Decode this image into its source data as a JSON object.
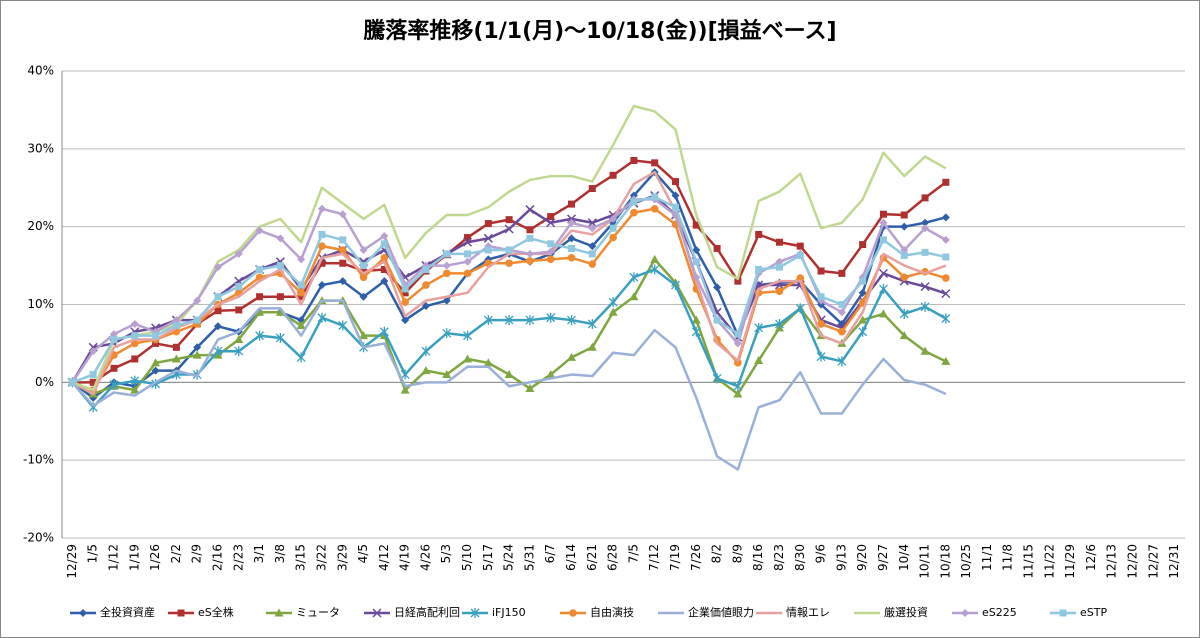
{
  "chart_data": {
    "type": "line",
    "title": "騰落率推移(1/1(月)～10/18(金))[損益ベース]",
    "categories": [
      "12/29",
      "1/5",
      "1/12",
      "1/19",
      "1/26",
      "2/2",
      "2/9",
      "2/16",
      "2/23",
      "3/1",
      "3/8",
      "3/15",
      "3/22",
      "3/29",
      "4/5",
      "4/12",
      "4/19",
      "4/26",
      "5/3",
      "5/10",
      "5/17",
      "5/24",
      "5/31",
      "6/7",
      "6/14",
      "6/21",
      "6/28",
      "7/5",
      "7/12",
      "7/19",
      "7/26",
      "8/2",
      "8/9",
      "8/16",
      "8/23",
      "8/30",
      "9/6",
      "9/13",
      "9/20",
      "9/27",
      "10/4",
      "10/11",
      "10/18",
      "10/25",
      "11/1",
      "11/8",
      "11/15",
      "11/22",
      "11/29",
      "12/6",
      "12/13",
      "12/20",
      "12/27",
      "12/31"
    ],
    "ylim": [
      -20,
      40
    ],
    "yticks": [
      {
        "value": -20,
        "label": "-20%"
      },
      {
        "value": -10,
        "label": "-10%"
      },
      {
        "value": 0,
        "label": "0%"
      },
      {
        "value": 10,
        "label": "10%"
      },
      {
        "value": 20,
        "label": "20%"
      },
      {
        "value": 30,
        "label": "30%"
      },
      {
        "value": 40,
        "label": "40%"
      }
    ],
    "grid": true,
    "legend": "bottom",
    "series": [
      {
        "name": "全投資資産",
        "color": "#2e5fa8",
        "marker": "diamond",
        "values": [
          0,
          -2,
          0,
          -0.5,
          1.5,
          1.5,
          4.5,
          7.2,
          6.5,
          9,
          9,
          8,
          12.5,
          13,
          11,
          13,
          8,
          9.8,
          10.5,
          14,
          15.8,
          16.5,
          15.5,
          16.5,
          18.5,
          17.5,
          20.5,
          24,
          27,
          24,
          17,
          12.2,
          6,
          12.5,
          12.8,
          13,
          10,
          7.5,
          11.5,
          20,
          20,
          20.5,
          21.2,
          null,
          null,
          null,
          null,
          null,
          null,
          null,
          null,
          null,
          null,
          null
        ]
      },
      {
        "name": "eS全株",
        "color": "#b03030",
        "marker": "square",
        "values": [
          0,
          0,
          1.8,
          3,
          5,
          4.5,
          7.5,
          9.2,
          9.3,
          11,
          11,
          11,
          15.3,
          15.3,
          14.3,
          14.5,
          11.5,
          14.3,
          16.4,
          18.6,
          20.4,
          20.9,
          19.6,
          21.3,
          22.9,
          24.9,
          26.6,
          28.5,
          28.2,
          25.8,
          20.2,
          17.2,
          13,
          19,
          18,
          17.5,
          14.3,
          14,
          17.7,
          21.6,
          21.5,
          23.7,
          25.7,
          null,
          null,
          null,
          null,
          null,
          null,
          null,
          null,
          null,
          null,
          null
        ]
      },
      {
        "name": "ミュータ",
        "color": "#7fa640",
        "marker": "triangle",
        "values": [
          0,
          -1.5,
          -0.5,
          -1,
          2.5,
          3,
          3.5,
          3.5,
          5.5,
          9,
          9,
          7.3,
          10.5,
          10.5,
          6,
          6,
          -1,
          1.5,
          1,
          3,
          2.5,
          1,
          -0.8,
          1,
          3.2,
          4.5,
          9,
          11,
          15.8,
          12.8,
          8,
          0.5,
          -1.5,
          2.8,
          7,
          9.5,
          6,
          5,
          8,
          8.8,
          6,
          4,
          2.7,
          null,
          null,
          null,
          null,
          null,
          null,
          null,
          null,
          null,
          null,
          null
        ]
      },
      {
        "name": "日経高配利回",
        "color": "#6a4a9a",
        "marker": "x",
        "values": [
          0,
          4.5,
          5,
          6.5,
          7,
          8,
          8,
          11,
          13,
          14.5,
          15.5,
          12,
          16,
          17,
          15.5,
          17,
          13.5,
          15,
          16.5,
          18,
          18.5,
          19.7,
          22.2,
          20.5,
          21,
          20.5,
          21.5,
          23,
          24,
          21.5,
          15.5,
          9,
          5.8,
          12.5,
          12.5,
          12.5,
          8,
          7,
          10.5,
          14,
          13,
          12.3,
          11.4,
          null,
          null,
          null,
          null,
          null,
          null,
          null,
          null,
          null,
          null,
          null
        ]
      },
      {
        "name": "iFJ150",
        "color": "#3aa0c0",
        "marker": "star",
        "values": [
          0,
          -3.2,
          -0.3,
          0.2,
          -0.2,
          1,
          1,
          4,
          4,
          6,
          5.7,
          3.2,
          8.3,
          7.3,
          4.5,
          6.5,
          1,
          4,
          6.3,
          6,
          8,
          8,
          8,
          8.3,
          8,
          7.5,
          10.3,
          13.5,
          14.5,
          12.5,
          6.5,
          0.5,
          -0.5,
          7,
          7.5,
          9.5,
          3.3,
          2.7,
          6.5,
          12,
          8.8,
          9.7,
          8.2,
          null,
          null,
          null,
          null,
          null,
          null,
          null,
          null,
          null,
          null,
          null
        ]
      },
      {
        "name": "自由演技",
        "color": "#f08a30",
        "marker": "circle",
        "values": [
          0,
          -1,
          3.5,
          5,
          5.5,
          6.5,
          7.5,
          10,
          11.5,
          13.5,
          14,
          11.5,
          17.5,
          17,
          13.5,
          16,
          10.3,
          12.5,
          14,
          14,
          15.3,
          15.3,
          15.6,
          15.8,
          16,
          15.2,
          18.6,
          21.8,
          22.3,
          20.3,
          12,
          5.5,
          2.5,
          11.5,
          11.7,
          13.4,
          7.5,
          6.5,
          10.2,
          16,
          13.5,
          14.2,
          13.4,
          null,
          null,
          null,
          null,
          null,
          null,
          null,
          null,
          null,
          null,
          null
        ]
      },
      {
        "name": "企業価値眼力",
        "color": "#9ab0d8",
        "marker": "none",
        "values": [
          0,
          -3,
          -1.3,
          -1.7,
          0,
          1.5,
          0.8,
          5.5,
          6.5,
          9.5,
          9.5,
          6,
          10.5,
          10.5,
          4.5,
          5,
          -0.5,
          0,
          0,
          2,
          2,
          -0.5,
          0,
          0.5,
          1,
          0.8,
          3.8,
          3.5,
          6.7,
          4.5,
          -2,
          -9.5,
          -11.2,
          -3.2,
          -2.3,
          1.3,
          -4,
          -4,
          -0.3,
          3,
          0.3,
          -0.3,
          -1.5,
          null,
          null,
          null,
          null,
          null,
          null,
          null,
          null,
          null,
          null,
          null
        ]
      },
      {
        "name": "情報エレ",
        "color": "#e8a0a0",
        "marker": "none",
        "values": [
          0,
          -1.5,
          4.5,
          5.5,
          5.5,
          7,
          8,
          10,
          11,
          13,
          14.5,
          10,
          16,
          16.5,
          14,
          15.5,
          8.5,
          10.5,
          11,
          11.5,
          14.8,
          16.5,
          16.5,
          16.5,
          19.5,
          19,
          21,
          25.5,
          27,
          22,
          13,
          5,
          2.8,
          12,
          13,
          13,
          6,
          5,
          9,
          16.5,
          15,
          14,
          15,
          null,
          null,
          null,
          null,
          null,
          null,
          null,
          null,
          null,
          null,
          null
        ]
      },
      {
        "name": "厳選投資",
        "color": "#c0d890",
        "marker": "none",
        "values": [
          0,
          -1,
          5.5,
          6,
          6.5,
          7.5,
          10.5,
          15.5,
          17,
          20,
          21,
          18,
          25,
          23,
          21,
          22.8,
          16,
          19.2,
          21.5,
          21.5,
          22.5,
          24.5,
          26,
          26.5,
          26.5,
          25.8,
          30.5,
          35.5,
          34.8,
          32.5,
          21.5,
          14.8,
          13.3,
          23.3,
          24.5,
          26.8,
          19.8,
          20.5,
          23.5,
          29.5,
          26.5,
          29,
          27.5,
          null,
          null,
          null,
          null,
          null,
          null,
          null,
          null,
          null,
          null,
          null
        ]
      },
      {
        "name": "eS225",
        "color": "#b8a0d0",
        "marker": "diamond",
        "values": [
          0,
          4,
          6.2,
          7.5,
          6.5,
          8,
          10.5,
          14.8,
          16.5,
          19.5,
          18.5,
          15.8,
          22.3,
          21.6,
          17,
          18.8,
          12.5,
          15,
          15,
          15.5,
          17.5,
          17,
          16.5,
          16.8,
          20.5,
          19.8,
          21,
          23.5,
          23.5,
          21.5,
          13.5,
          8,
          5,
          14,
          15.5,
          16.5,
          10.5,
          9,
          13.5,
          20.5,
          17,
          19.8,
          18.3,
          null,
          null,
          null,
          null,
          null,
          null,
          null,
          null,
          null,
          null,
          null
        ]
      },
      {
        "name": "eSTP",
        "color": "#90c8e0",
        "marker": "square",
        "values": [
          0,
          1,
          5.5,
          6,
          6,
          7.3,
          8,
          11,
          12.3,
          14.5,
          15,
          12.5,
          19,
          18.3,
          15,
          17.8,
          12,
          14.5,
          16.5,
          16.5,
          17,
          17,
          18.5,
          17.8,
          17.2,
          16.5,
          19.8,
          23.2,
          23.8,
          22.5,
          15.5,
          8,
          6.2,
          14.5,
          14.8,
          16.3,
          11,
          10,
          13,
          18.3,
          16.3,
          16.7,
          16.1,
          null,
          null,
          null,
          null,
          null,
          null,
          null,
          null,
          null,
          null,
          null
        ]
      }
    ]
  }
}
